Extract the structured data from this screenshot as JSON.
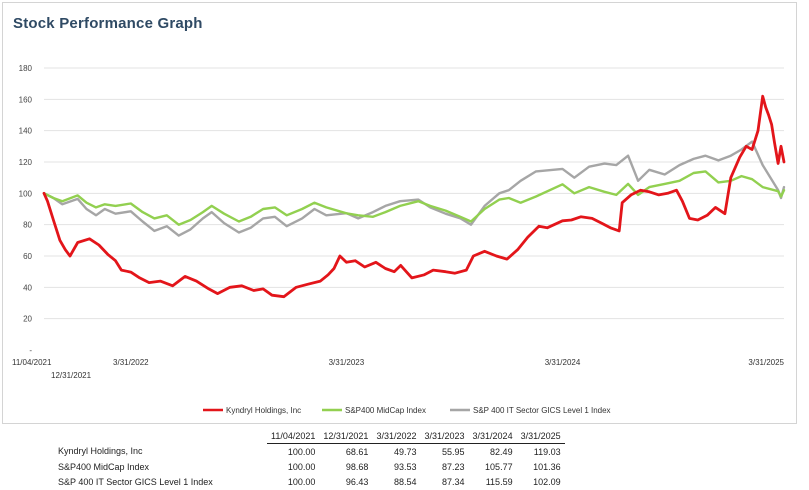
{
  "chart_data": {
    "type": "line",
    "title": "Stock Performance Graph",
    "ylim": [
      0,
      180
    ],
    "yticks": [
      {
        "value": 0,
        "label": "-"
      },
      {
        "value": 20,
        "label": "20"
      },
      {
        "value": 40,
        "label": "40"
      },
      {
        "value": 60,
        "label": "60"
      },
      {
        "value": 80,
        "label": "80"
      },
      {
        "value": 100,
        "label": "100"
      },
      {
        "value": 120,
        "label": "120"
      },
      {
        "value": 140,
        "label": "140"
      },
      {
        "value": 160,
        "label": "160"
      },
      {
        "value": 180,
        "label": "180"
      }
    ],
    "x_start": "11/04/2021",
    "x_end": "4/10/2025",
    "xticks": [
      {
        "date": "11/04/2021",
        "label": "11/04/2021",
        "row": 1
      },
      {
        "date": "12/31/2021",
        "label": "12/31/2021",
        "row": 2
      },
      {
        "date": "3/31/2022",
        "label": "3/31/2022",
        "row": 1
      },
      {
        "date": "3/31/2023",
        "label": "3/31/2023",
        "row": 1
      },
      {
        "date": "3/31/2024",
        "label": "3/31/2024",
        "row": 1
      },
      {
        "date": "3/31/2025",
        "label": "3/31/2025",
        "row": 1
      }
    ],
    "series": [
      {
        "name": "Kyndryl Holdings, Inc",
        "color": "#e3151a",
        "points": [
          [
            "11/04/2021",
            100
          ],
          [
            "11/10/2021",
            95
          ],
          [
            "11/20/2021",
            83
          ],
          [
            "12/01/2021",
            70
          ],
          [
            "12/10/2021",
            64
          ],
          [
            "12/18/2021",
            60
          ],
          [
            "12/31/2021",
            68.61
          ],
          [
            "1/20/2022",
            71
          ],
          [
            "2/05/2022",
            67
          ],
          [
            "2/20/2022",
            61
          ],
          [
            "3/05/2022",
            57
          ],
          [
            "3/15/2022",
            51
          ],
          [
            "3/31/2022",
            49.73
          ],
          [
            "4/15/2022",
            46
          ],
          [
            "5/01/2022",
            43
          ],
          [
            "5/20/2022",
            44
          ],
          [
            "6/10/2022",
            41
          ],
          [
            "7/01/2022",
            47
          ],
          [
            "7/20/2022",
            44
          ],
          [
            "8/10/2022",
            39
          ],
          [
            "8/25/2022",
            36
          ],
          [
            "9/15/2022",
            40
          ],
          [
            "10/05/2022",
            41
          ],
          [
            "10/25/2022",
            38
          ],
          [
            "11/10/2022",
            39
          ],
          [
            "11/25/2022",
            35
          ],
          [
            "12/15/2022",
            34
          ],
          [
            "1/05/2023",
            40
          ],
          [
            "1/25/2023",
            42
          ],
          [
            "2/15/2023",
            44
          ],
          [
            "2/28/2023",
            48
          ],
          [
            "3/10/2023",
            52
          ],
          [
            "3/20/2023",
            60
          ],
          [
            "3/31/2023",
            55.95
          ],
          [
            "4/15/2023",
            57
          ],
          [
            "5/01/2023",
            53
          ],
          [
            "5/20/2023",
            56
          ],
          [
            "6/05/2023",
            52
          ],
          [
            "6/20/2023",
            50
          ],
          [
            "7/01/2023",
            54
          ],
          [
            "7/20/2023",
            46
          ],
          [
            "8/10/2023",
            48
          ],
          [
            "8/25/2023",
            51
          ],
          [
            "9/15/2023",
            50
          ],
          [
            "10/01/2023",
            49
          ],
          [
            "10/20/2023",
            51
          ],
          [
            "11/01/2023",
            60
          ],
          [
            "11/20/2023",
            63
          ],
          [
            "12/10/2023",
            60
          ],
          [
            "12/28/2023",
            58
          ],
          [
            "1/15/2024",
            64
          ],
          [
            "2/01/2024",
            72
          ],
          [
            "2/20/2024",
            79
          ],
          [
            "3/05/2024",
            78
          ],
          [
            "3/31/2024",
            82.49
          ],
          [
            "4/15/2024",
            83
          ],
          [
            "5/01/2024",
            85
          ],
          [
            "5/20/2024",
            84
          ],
          [
            "6/05/2024",
            81
          ],
          [
            "6/20/2024",
            78
          ],
          [
            "7/05/2024",
            76
          ],
          [
            "7/10/2024",
            94
          ],
          [
            "7/25/2024",
            99
          ],
          [
            "8/10/2024",
            102
          ],
          [
            "8/25/2024",
            101
          ],
          [
            "9/10/2024",
            99
          ],
          [
            "9/25/2024",
            100
          ],
          [
            "10/10/2024",
            102
          ],
          [
            "10/20/2024",
            95
          ],
          [
            "11/01/2024",
            84
          ],
          [
            "11/15/2024",
            83
          ],
          [
            "12/01/2024",
            86
          ],
          [
            "12/15/2024",
            91
          ],
          [
            "12/31/2024",
            87
          ],
          [
            "1/10/2025",
            110
          ],
          [
            "1/25/2025",
            123
          ],
          [
            "2/05/2025",
            130
          ],
          [
            "2/15/2025",
            128
          ],
          [
            "2/25/2025",
            140
          ],
          [
            "3/05/2025",
            162
          ],
          [
            "3/10/2025",
            155
          ],
          [
            "3/15/2025",
            150
          ],
          [
            "3/20/2025",
            144
          ],
          [
            "3/25/2025",
            132
          ],
          [
            "3/31/2025",
            119.03
          ],
          [
            "4/05/2025",
            130
          ],
          [
            "4/10/2025",
            120
          ]
        ]
      },
      {
        "name": "S&P400 MidCap Index",
        "color": "#92d050",
        "points": [
          [
            "11/04/2021",
            100
          ],
          [
            "11/20/2021",
            97
          ],
          [
            "12/05/2021",
            95
          ],
          [
            "12/31/2021",
            98.68
          ],
          [
            "1/15/2022",
            94
          ],
          [
            "1/31/2022",
            91
          ],
          [
            "2/15/2022",
            93
          ],
          [
            "3/05/2022",
            92
          ],
          [
            "3/31/2022",
            93.53
          ],
          [
            "4/20/2022",
            88
          ],
          [
            "5/10/2022",
            84
          ],
          [
            "5/31/2022",
            86
          ],
          [
            "6/20/2022",
            80
          ],
          [
            "7/10/2022",
            83
          ],
          [
            "7/31/2022",
            88
          ],
          [
            "8/15/2022",
            92
          ],
          [
            "9/05/2022",
            87
          ],
          [
            "9/30/2022",
            82
          ],
          [
            "10/20/2022",
            85
          ],
          [
            "11/10/2022",
            90
          ],
          [
            "11/30/2022",
            91
          ],
          [
            "12/20/2022",
            86
          ],
          [
            "1/15/2023",
            90
          ],
          [
            "2/05/2023",
            94
          ],
          [
            "2/25/2023",
            91
          ],
          [
            "3/31/2023",
            87.23
          ],
          [
            "4/20/2023",
            86
          ],
          [
            "5/15/2023",
            85
          ],
          [
            "6/05/2023",
            88
          ],
          [
            "6/30/2023",
            92
          ],
          [
            "7/31/2023",
            95
          ],
          [
            "8/20/2023",
            92
          ],
          [
            "9/15/2023",
            89
          ],
          [
            "10/10/2023",
            85
          ],
          [
            "10/28/2023",
            82
          ],
          [
            "11/20/2023",
            90
          ],
          [
            "12/15/2023",
            96
          ],
          [
            "12/31/2023",
            97
          ],
          [
            "1/20/2024",
            94
          ],
          [
            "2/15/2024",
            98
          ],
          [
            "3/31/2024",
            105.77
          ],
          [
            "4/20/2024",
            100
          ],
          [
            "5/15/2024",
            104
          ],
          [
            "6/10/2024",
            101
          ],
          [
            "6/30/2024",
            99
          ],
          [
            "7/20/2024",
            106
          ],
          [
            "8/06/2024",
            99
          ],
          [
            "8/25/2024",
            104
          ],
          [
            "9/20/2024",
            106
          ],
          [
            "10/15/2024",
            108
          ],
          [
            "11/08/2024",
            113
          ],
          [
            "11/28/2024",
            114
          ],
          [
            "12/20/2024",
            107
          ],
          [
            "1/10/2025",
            108
          ],
          [
            "1/28/2025",
            111
          ],
          [
            "2/15/2025",
            109
          ],
          [
            "3/05/2025",
            104
          ],
          [
            "3/31/2025",
            101.36
          ],
          [
            "4/05/2025",
            98
          ],
          [
            "4/10/2025",
            102
          ]
        ]
      },
      {
        "name": "S&P 400 IT Sector GICS Level 1 Index",
        "color": "#a6a6a6",
        "points": [
          [
            "11/04/2021",
            100
          ],
          [
            "11/20/2021",
            97
          ],
          [
            "12/05/2021",
            93
          ],
          [
            "12/31/2021",
            96.43
          ],
          [
            "1/15/2022",
            90
          ],
          [
            "1/31/2022",
            86
          ],
          [
            "2/15/2022",
            90
          ],
          [
            "3/05/2022",
            87
          ],
          [
            "3/31/2022",
            88.54
          ],
          [
            "4/20/2022",
            82
          ],
          [
            "5/10/2022",
            76
          ],
          [
            "5/31/2022",
            79
          ],
          [
            "6/20/2022",
            73
          ],
          [
            "7/10/2022",
            77
          ],
          [
            "7/31/2022",
            84
          ],
          [
            "8/15/2022",
            88
          ],
          [
            "9/05/2022",
            81
          ],
          [
            "9/30/2022",
            75
          ],
          [
            "10/20/2022",
            78
          ],
          [
            "11/10/2022",
            84
          ],
          [
            "11/30/2022",
            85
          ],
          [
            "12/20/2022",
            79
          ],
          [
            "1/15/2023",
            84
          ],
          [
            "2/05/2023",
            90
          ],
          [
            "2/25/2023",
            86
          ],
          [
            "3/31/2023",
            87.34
          ],
          [
            "4/20/2023",
            84
          ],
          [
            "5/15/2023",
            88
          ],
          [
            "6/05/2023",
            92
          ],
          [
            "6/30/2023",
            95
          ],
          [
            "7/31/2023",
            96
          ],
          [
            "8/20/2023",
            91
          ],
          [
            "9/15/2023",
            87
          ],
          [
            "10/10/2023",
            84
          ],
          [
            "10/28/2023",
            80
          ],
          [
            "11/20/2023",
            92
          ],
          [
            "12/15/2023",
            100
          ],
          [
            "12/31/2023",
            102
          ],
          [
            "1/20/2024",
            108
          ],
          [
            "2/15/2024",
            114
          ],
          [
            "3/31/2024",
            115.59
          ],
          [
            "4/20/2024",
            110
          ],
          [
            "5/15/2024",
            117
          ],
          [
            "6/10/2024",
            119
          ],
          [
            "6/30/2024",
            118
          ],
          [
            "7/20/2024",
            124
          ],
          [
            "8/06/2024",
            108
          ],
          [
            "8/25/2024",
            115
          ],
          [
            "9/20/2024",
            112
          ],
          [
            "10/15/2024",
            118
          ],
          [
            "11/08/2024",
            122
          ],
          [
            "11/28/2024",
            124
          ],
          [
            "12/20/2024",
            121
          ],
          [
            "1/10/2025",
            124
          ],
          [
            "1/28/2025",
            128
          ],
          [
            "2/15/2025",
            133
          ],
          [
            "3/05/2025",
            118
          ],
          [
            "3/31/2025",
            102.09
          ],
          [
            "4/05/2025",
            97
          ],
          [
            "4/10/2025",
            104
          ]
        ]
      }
    ]
  },
  "table": {
    "headers": [
      "11/04/2021",
      "12/31/2021",
      "3/31/2022",
      "3/31/2023",
      "3/31/2024",
      "3/31/2025"
    ],
    "rows": [
      {
        "name": "Kyndryl Holdings, Inc",
        "values": [
          "100.00",
          "68.61",
          "49.73",
          "55.95",
          "82.49",
          "119.03"
        ]
      },
      {
        "name": "S&P400 MidCap Index",
        "values": [
          "100.00",
          "98.68",
          "93.53",
          "87.23",
          "105.77",
          "101.36"
        ]
      },
      {
        "name": "S&P 400 IT Sector GICS Level 1 Index",
        "values": [
          "100.00",
          "96.43",
          "88.54",
          "87.34",
          "115.59",
          "102.09"
        ]
      }
    ]
  }
}
